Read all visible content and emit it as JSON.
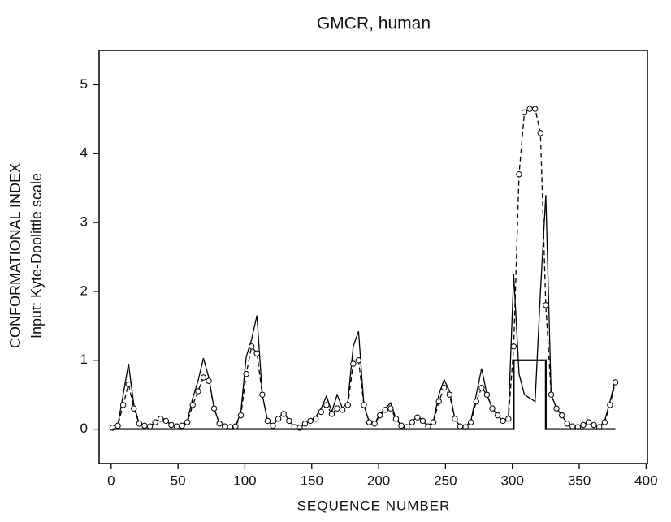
{
  "chart_data": {
    "type": "line",
    "title": "GMCR, human",
    "xlabel": "SEQUENCE NUMBER",
    "ylabel": [
      "CONFORMATIONAL INDEX",
      "Input: Kyte-Doolittle scale"
    ],
    "xlim": [
      -9,
      401
    ],
    "ylim": [
      -0.5,
      5.5
    ],
    "xticks": [
      0,
      50,
      100,
      150,
      200,
      250,
      300,
      350,
      400
    ],
    "yticks": [
      0,
      1,
      2,
      3,
      4,
      5
    ],
    "series": [
      {
        "color": "#000000",
        "style": "solid",
        "x": [
          1,
          5,
          9,
          13,
          17,
          21,
          25,
          29,
          33,
          37,
          41,
          45,
          49,
          53,
          57,
          61,
          65,
          69,
          73,
          77,
          81,
          85,
          89,
          93,
          97,
          101,
          105,
          109,
          113,
          117,
          121,
          125,
          129,
          133,
          137,
          141,
          145,
          149,
          153,
          157,
          161,
          165,
          169,
          173,
          177,
          181,
          185,
          189,
          193,
          197,
          201,
          205,
          209,
          213,
          217,
          221,
          225,
          229,
          233,
          237,
          241,
          245,
          249,
          253,
          257,
          261,
          265,
          269,
          273,
          277,
          281,
          285,
          289,
          293,
          297,
          301,
          305,
          309,
          313,
          317,
          321,
          325,
          329,
          333,
          337,
          341,
          345,
          349,
          353,
          357,
          361,
          365,
          369,
          373,
          377
        ],
        "values": [
          0.02,
          0.06,
          0.5,
          0.95,
          0.35,
          0.08,
          0.05,
          0.04,
          0.1,
          0.17,
          0.12,
          0.06,
          0.04,
          0.05,
          0.12,
          0.45,
          0.7,
          1.03,
          0.75,
          0.3,
          0.08,
          0.04,
          0.03,
          0.04,
          0.25,
          1.05,
          1.3,
          1.65,
          0.5,
          0.12,
          0.05,
          0.15,
          0.25,
          0.12,
          0.03,
          0.02,
          0.08,
          0.12,
          0.18,
          0.3,
          0.48,
          0.25,
          0.5,
          0.3,
          0.4,
          1.2,
          1.42,
          0.35,
          0.1,
          0.08,
          0.22,
          0.3,
          0.38,
          0.15,
          0.05,
          0.03,
          0.1,
          0.2,
          0.12,
          0.04,
          0.12,
          0.5,
          0.72,
          0.55,
          0.15,
          0.04,
          0.03,
          0.12,
          0.5,
          0.88,
          0.5,
          0.3,
          0.2,
          0.12,
          0.15,
          2.25,
          0.8,
          0.5,
          0.45,
          0.4,
          2.0,
          3.4,
          0.5,
          0.3,
          0.2,
          0.08,
          0.04,
          0.03,
          0.06,
          0.12,
          0.06,
          0.03,
          0.12,
          0.4,
          0.72
        ]
      },
      {
        "color": "#000000",
        "style": "dashed",
        "marker": "circle",
        "x": [
          1,
          5,
          9,
          13,
          17,
          21,
          25,
          29,
          33,
          37,
          41,
          45,
          49,
          53,
          57,
          61,
          65,
          69,
          73,
          77,
          81,
          85,
          89,
          93,
          97,
          101,
          105,
          109,
          113,
          117,
          121,
          125,
          129,
          133,
          137,
          141,
          145,
          149,
          153,
          157,
          161,
          165,
          169,
          173,
          177,
          181,
          185,
          189,
          193,
          197,
          201,
          205,
          209,
          213,
          217,
          221,
          225,
          229,
          233,
          237,
          241,
          245,
          249,
          253,
          257,
          261,
          265,
          269,
          273,
          277,
          281,
          285,
          289,
          293,
          297,
          301,
          305,
          309,
          313,
          317,
          321,
          325,
          329,
          333,
          337,
          341,
          345,
          349,
          353,
          357,
          361,
          365,
          369,
          373,
          377
        ],
        "values": [
          0.02,
          0.05,
          0.35,
          0.65,
          0.3,
          0.08,
          0.05,
          0.04,
          0.1,
          0.15,
          0.12,
          0.06,
          0.04,
          0.05,
          0.1,
          0.35,
          0.55,
          0.75,
          0.7,
          0.3,
          0.08,
          0.04,
          0.03,
          0.04,
          0.2,
          0.8,
          1.2,
          1.1,
          0.5,
          0.12,
          0.05,
          0.15,
          0.22,
          0.12,
          0.03,
          0.02,
          0.08,
          0.12,
          0.15,
          0.25,
          0.35,
          0.22,
          0.3,
          0.28,
          0.35,
          0.95,
          1.0,
          0.35,
          0.1,
          0.08,
          0.2,
          0.28,
          0.3,
          0.15,
          0.05,
          0.03,
          0.1,
          0.17,
          0.12,
          0.04,
          0.1,
          0.4,
          0.6,
          0.5,
          0.15,
          0.04,
          0.03,
          0.1,
          0.4,
          0.6,
          0.5,
          0.3,
          0.2,
          0.12,
          0.15,
          1.2,
          3.7,
          4.6,
          4.65,
          4.65,
          4.3,
          1.8,
          0.5,
          0.3,
          0.2,
          0.08,
          0.04,
          0.03,
          0.06,
          0.1,
          0.06,
          0.03,
          0.1,
          0.35,
          0.68
        ]
      },
      {
        "color": "#000000",
        "style": "thick",
        "x": [
          1,
          301,
          301,
          325,
          325,
          377
        ],
        "values": [
          0,
          0,
          1,
          1,
          0,
          0
        ]
      }
    ]
  }
}
